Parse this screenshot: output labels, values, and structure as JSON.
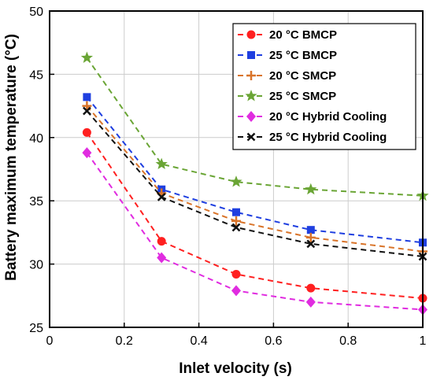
{
  "chart_data": {
    "type": "line",
    "xlabel": "Inlet velocity (s)",
    "ylabel": "Battery maximum temperature (°C)",
    "xlim": [
      0,
      1
    ],
    "ylim": [
      25,
      50
    ],
    "xticks": [
      0,
      0.2,
      0.4,
      0.6,
      0.8,
      1
    ],
    "xtick_labels": [
      "0",
      "0.2",
      "0.4",
      "0.6",
      "0.8",
      "1"
    ],
    "yticks": [
      25,
      30,
      35,
      40,
      45,
      50
    ],
    "ytick_labels": [
      "25",
      "30",
      "35",
      "40",
      "45",
      "50"
    ],
    "grid": true,
    "legend_position": "top-right",
    "x": [
      0.1,
      0.3,
      0.5,
      0.7,
      1.0
    ],
    "series": [
      {
        "name": "20 °C BMCP",
        "color": "#ff2020",
        "marker": "circle",
        "values": [
          40.4,
          31.8,
          29.2,
          28.1,
          27.3
        ]
      },
      {
        "name": "25 °C BMCP",
        "color": "#1f3fe0",
        "marker": "square",
        "values": [
          43.2,
          35.9,
          34.1,
          32.7,
          31.7
        ]
      },
      {
        "name": "20 °C SMCP",
        "color": "#d9742a",
        "marker": "plus",
        "values": [
          42.5,
          35.6,
          33.4,
          32.1,
          31.0
        ]
      },
      {
        "name": "25 °C SMCP",
        "color": "#6aa535",
        "marker": "star",
        "values": [
          46.3,
          37.9,
          36.5,
          35.9,
          35.4
        ]
      },
      {
        "name": "20 °C Hybrid Cooling",
        "color": "#e02ce0",
        "marker": "diamond",
        "values": [
          38.8,
          30.5,
          27.9,
          27.0,
          26.4
        ]
      },
      {
        "name": "25 °C Hybrid Cooling",
        "color": "#111111",
        "marker": "x",
        "values": [
          42.1,
          35.3,
          32.9,
          31.6,
          30.6
        ]
      }
    ]
  }
}
